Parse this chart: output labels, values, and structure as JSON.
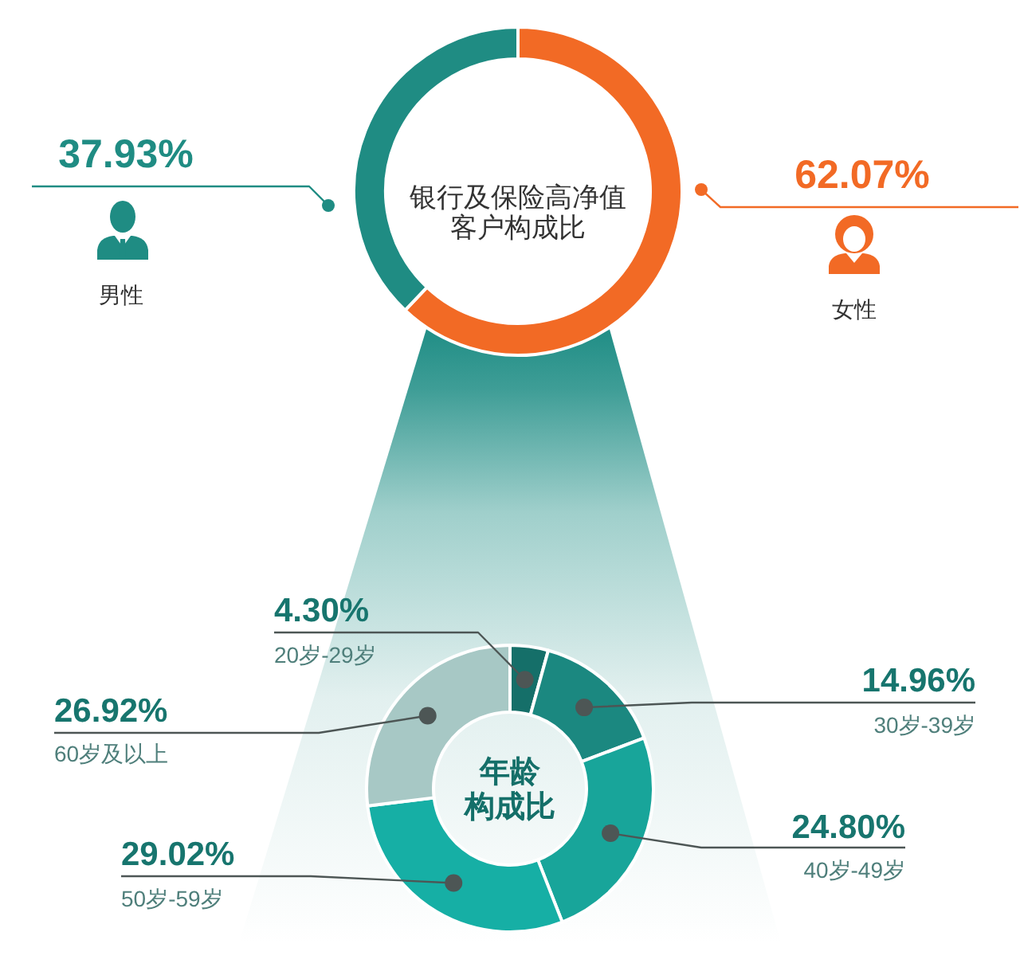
{
  "chart_data": [
    {
      "type": "donut",
      "title": "银行及保险高净值客户构成比",
      "categories": [
        "女性",
        "男性"
      ],
      "values": [
        62.07,
        37.93
      ],
      "colors": [
        "#f26a25",
        "#1f8c83"
      ],
      "value_labels": [
        "62.07%",
        "37.93%"
      ],
      "legend": "bottom"
    },
    {
      "type": "donut",
      "title": "年龄构成比",
      "categories": [
        "20岁-29岁",
        "30岁-39岁",
        "40岁-49岁",
        "50岁-59岁",
        "60岁及以上"
      ],
      "values": [
        4.3,
        14.96,
        24.8,
        29.02,
        26.92
      ],
      "colors": [
        "#156f69",
        "#1b8880",
        "#18a59a",
        "#16afa5",
        "#a7c8c5"
      ],
      "value_labels": [
        "4.30%",
        "14.96%",
        "24.80%",
        "29.02%",
        "26.92%"
      ]
    }
  ]
}
